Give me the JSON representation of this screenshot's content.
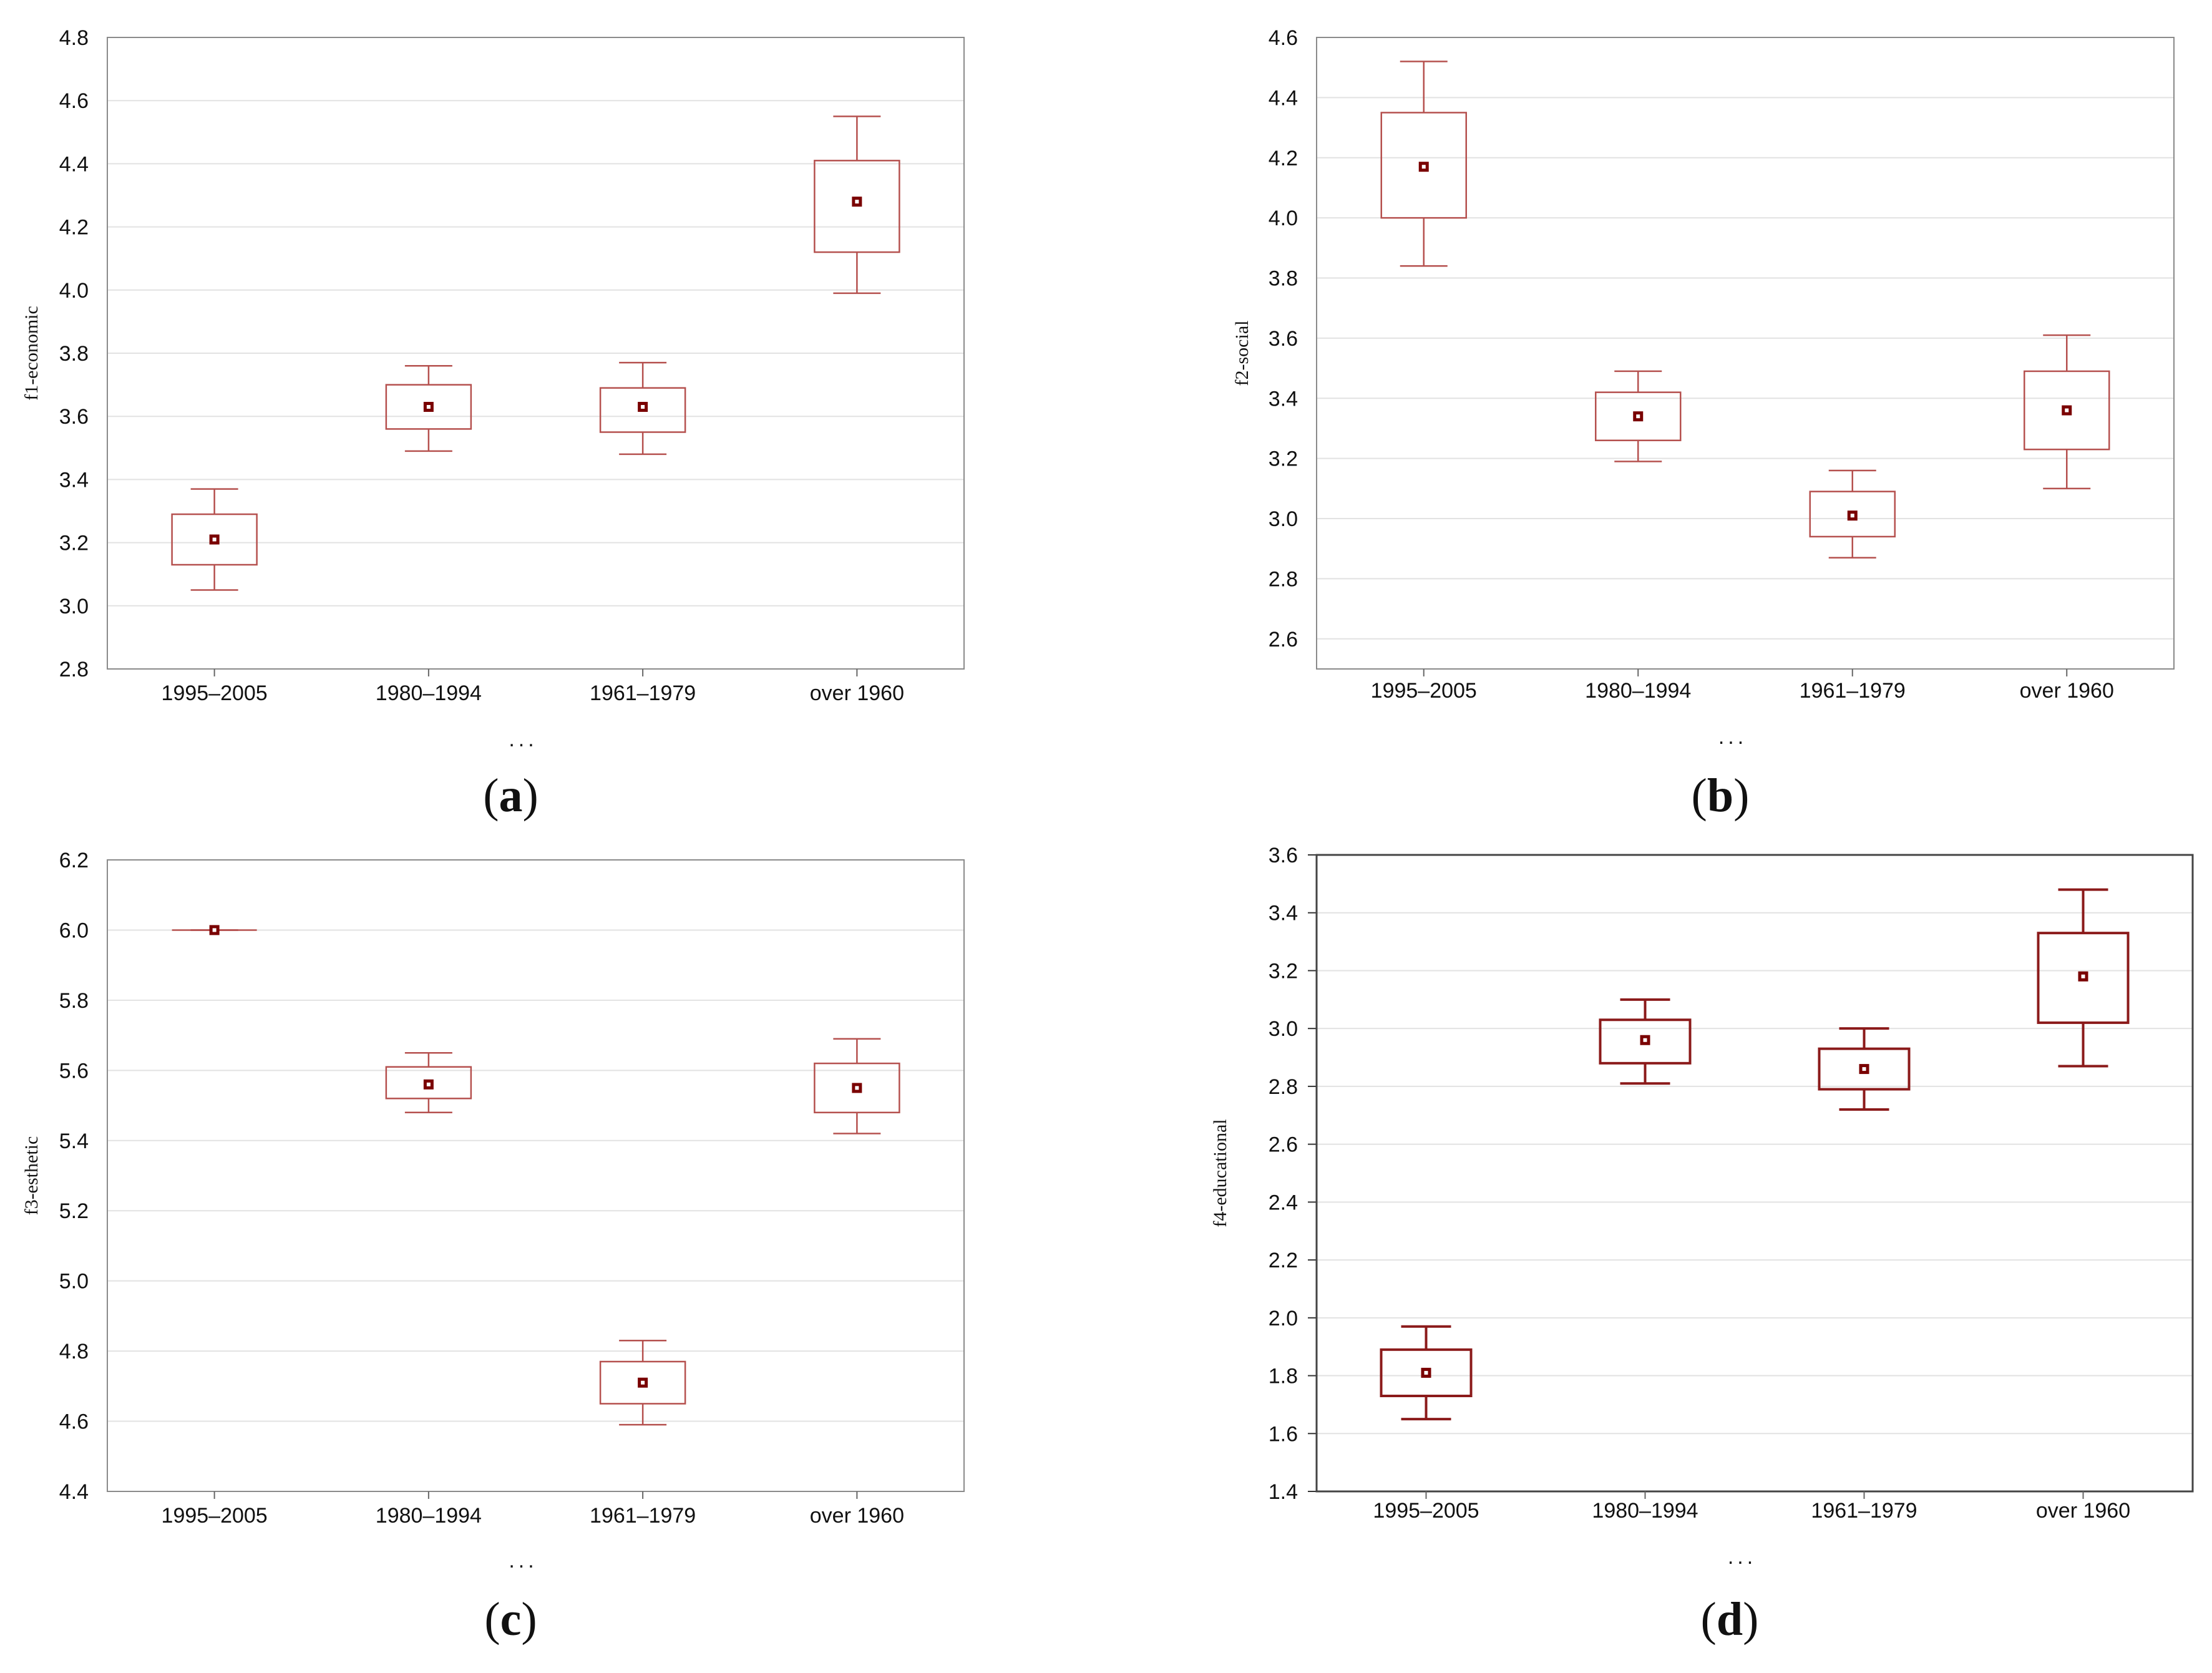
{
  "chart_data": [
    {
      "type": "box",
      "panel": "(a)",
      "caption_letter": "a",
      "ylabel": "f1-economic",
      "xlabel": "...",
      "categories": [
        "1995–2005",
        "1980–1994",
        "1961–1979",
        "over 1960"
      ],
      "ylim": [
        2.8,
        4.8
      ],
      "yticks": [
        2.8,
        3.0,
        3.2,
        3.4,
        3.6,
        3.8,
        4.0,
        4.2,
        4.4,
        4.6,
        4.8
      ],
      "boxes": [
        {
          "mean": 3.21,
          "q1": 3.13,
          "q3": 3.29,
          "low": 3.05,
          "high": 3.37
        },
        {
          "mean": 3.63,
          "q1": 3.56,
          "q3": 3.7,
          "low": 3.49,
          "high": 3.76
        },
        {
          "mean": 3.63,
          "q1": 3.55,
          "q3": 3.69,
          "low": 3.48,
          "high": 3.77
        },
        {
          "mean": 4.28,
          "q1": 4.12,
          "q3": 4.41,
          "low": 3.99,
          "high": 4.55
        }
      ]
    },
    {
      "type": "box",
      "panel": "(b)",
      "caption_letter": "b",
      "ylabel": "f2-social",
      "xlabel": "...",
      "categories": [
        "1995–2005",
        "1980–1994",
        "1961–1979",
        "over 1960"
      ],
      "ylim": [
        2.5,
        4.6
      ],
      "yticks": [
        2.6,
        2.8,
        3.0,
        3.2,
        3.4,
        3.6,
        3.8,
        4.0,
        4.2,
        4.4,
        4.6
      ],
      "boxes": [
        {
          "mean": 4.17,
          "q1": 4.0,
          "q3": 4.35,
          "low": 3.84,
          "high": 4.52
        },
        {
          "mean": 3.34,
          "q1": 3.26,
          "q3": 3.42,
          "low": 3.19,
          "high": 3.49
        },
        {
          "mean": 3.01,
          "q1": 2.94,
          "q3": 3.09,
          "low": 2.87,
          "high": 3.16
        },
        {
          "mean": 3.36,
          "q1": 3.23,
          "q3": 3.49,
          "low": 3.1,
          "high": 3.61
        }
      ]
    },
    {
      "type": "box",
      "panel": "(c)",
      "caption_letter": "c",
      "ylabel": "f3-esthetic",
      "xlabel": "...",
      "categories": [
        "1995–2005",
        "1980–1994",
        "1961–1979",
        "over 1960"
      ],
      "ylim": [
        4.4,
        6.2
      ],
      "yticks": [
        4.4,
        4.6,
        4.8,
        5.0,
        5.2,
        5.4,
        5.6,
        5.8,
        6.0,
        6.2
      ],
      "boxes": [
        {
          "mean": 6.0,
          "q1": 6.0,
          "q3": 6.0,
          "low": 6.0,
          "high": 6.0
        },
        {
          "mean": 5.56,
          "q1": 5.52,
          "q3": 5.61,
          "low": 5.48,
          "high": 5.65
        },
        {
          "mean": 4.71,
          "q1": 4.65,
          "q3": 4.77,
          "low": 4.59,
          "high": 4.83
        },
        {
          "mean": 5.55,
          "q1": 5.48,
          "q3": 5.62,
          "low": 5.42,
          "high": 5.69
        }
      ]
    },
    {
      "type": "box",
      "panel": "(d)",
      "caption_letter": "d",
      "ylabel": "f4-educational",
      "xlabel": "...",
      "categories": [
        "1995–2005",
        "1980–1994",
        "1961–1979",
        "over 1960"
      ],
      "ylim": [
        1.4,
        3.6
      ],
      "yticks": [
        1.4,
        1.6,
        1.8,
        2.0,
        2.2,
        2.4,
        2.6,
        2.8,
        3.0,
        3.2,
        3.4,
        3.6
      ],
      "boxes": [
        {
          "mean": 1.81,
          "q1": 1.73,
          "q3": 1.89,
          "low": 1.65,
          "high": 1.97
        },
        {
          "mean": 2.96,
          "q1": 2.88,
          "q3": 3.03,
          "low": 2.81,
          "high": 3.1
        },
        {
          "mean": 2.86,
          "q1": 2.79,
          "q3": 2.93,
          "low": 2.72,
          "high": 3.0
        },
        {
          "mean": 3.18,
          "q1": 3.02,
          "q3": 3.33,
          "low": 2.87,
          "high": 3.48
        }
      ]
    }
  ],
  "colors": {
    "box": "#b5504e",
    "box_dark": "#8b1a1a",
    "marker": "#7a0000",
    "grid": "#e2e2e2",
    "frame": "#8a8a8a"
  }
}
